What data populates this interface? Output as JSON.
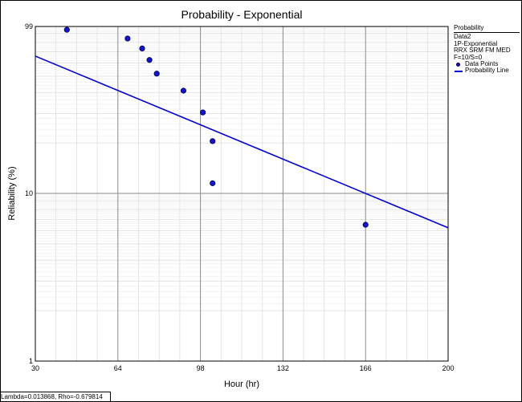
{
  "chart_data": {
    "type": "scatter",
    "title": "Probability - Exponential",
    "xlabel": "Hour (hr)",
    "ylabel": "Reliability (%)",
    "xlim": [
      30,
      200
    ],
    "ylim": [
      1,
      99
    ],
    "y_scale": "log",
    "x_ticks": [
      "30",
      "64",
      "98",
      "132",
      "166",
      "200"
    ],
    "y_ticks": [
      "99",
      "10",
      "1"
    ],
    "grid": true,
    "legend_position": "right",
    "series": [
      {
        "name": "Data Points",
        "kind": "points",
        "color": "#1414c8",
        "points": [
          {
            "x": 43,
            "y": 94.6
          },
          {
            "x": 68,
            "y": 83.9
          },
          {
            "x": 74,
            "y": 73.2
          },
          {
            "x": 77,
            "y": 62.5
          },
          {
            "x": 80,
            "y": 51.8
          },
          {
            "x": 91,
            "y": 41.0
          },
          {
            "x": 99,
            "y": 30.4
          },
          {
            "x": 103,
            "y": 20.5
          },
          {
            "x": 103,
            "y": 11.5
          },
          {
            "x": 166,
            "y": 6.5
          }
        ]
      },
      {
        "name": "Probability Line",
        "kind": "line",
        "color": "#0000cc",
        "points": [
          {
            "x": 30,
            "y": 65.9
          },
          {
            "x": 200,
            "y": 6.24
          }
        ]
      }
    ]
  },
  "legend": {
    "title": "Probability",
    "lines": [
      "Data2",
      "1P-Exponential",
      "RRX SRM FM MED",
      "F=10/S=0"
    ],
    "points_label": "Data Points",
    "line_label": "Probability Line"
  },
  "footer": {
    "text": "Lambda=0.013868, Rho=-0.679814"
  }
}
